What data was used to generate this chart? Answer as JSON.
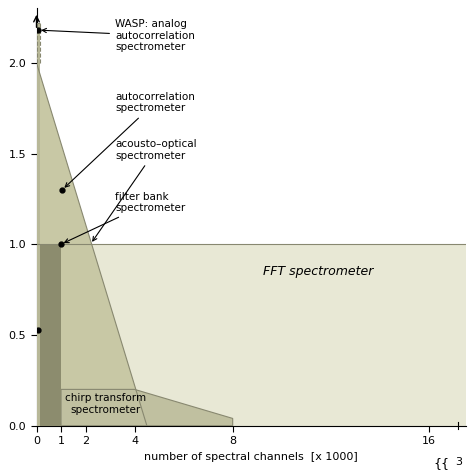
{
  "xlabel": "number of spectral channels  [x 1000]",
  "fft_color": "#e8e8d5",
  "wasp_color": "#c8c8a5",
  "filter_bar_color": "#8c8c6e",
  "chirp_color": "#c0c0a0",
  "fft_label": "FFT spectrometer",
  "chirp_text": "chirp transform\nspectrometer",
  "x_ticks": [
    0,
    1,
    2,
    4,
    8,
    16
  ],
  "x_tick_labels": [
    "0",
    "1",
    "2",
    "4",
    "8",
    "16"
  ],
  "y_ticks": [
    0.0,
    0.5,
    1.0,
    1.5,
    2.0
  ],
  "y_tick_labels": [
    "0.0",
    "0.5",
    "1.0",
    "1.5",
    "2.0"
  ],
  "ylim": [
    0,
    2.3
  ],
  "xlim_left": 0,
  "xlim_right": 17.5
}
